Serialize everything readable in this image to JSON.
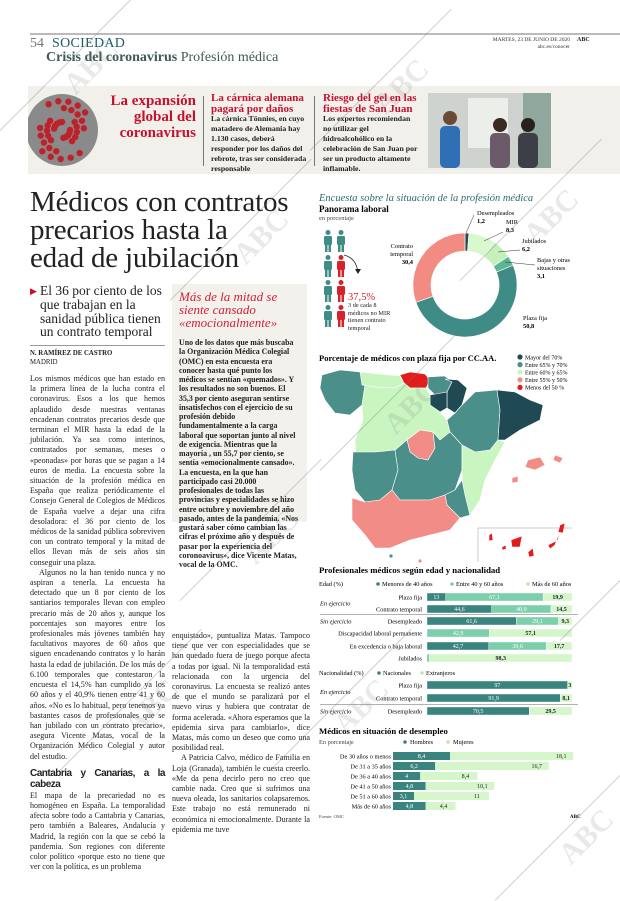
{
  "header": {
    "page_number": "54",
    "section": "SOCIEDAD",
    "kicker_bold": "Crisis del coronavirus",
    "kicker": "Profesión médica",
    "date": "MARTES, 23 DE JUNIO DE 2020",
    "brand": "ABC",
    "url": "abc.es/conocer"
  },
  "teasers": {
    "main": "La expansión\nglobal del\ncoronavirus",
    "items": [
      {
        "title": "La cárnica alemana pagará por daños",
        "body": "La cárnica Tönnies, en cuyo matadero de Alemania hay 1.130 casos, deberá responder por los daños del rebrote, tras ser considerada responsable"
      },
      {
        "title": "Riesgo del gel en las fiestas de San Juan",
        "body": "Los expertos recomiendan no utilizar gel hidroalcohólico en la celebración de San Juan por ser un producto altamente inflamable."
      }
    ]
  },
  "article": {
    "headline": "Médicos con contratos\nprecarios hasta la\nedad de jubilación",
    "summary": "El 36 por ciento de los que trabajan en la sanidad pública tienen un contrato temporal",
    "byline": "N. RAMÍREZ DE CASTRO",
    "location": "MADRID",
    "col1": [
      "Los mismos médicos que han estado en la primera línea de la lucha contra el coronavirus. Esos a los que hemos aplaudido desde nuestras ventanas encadenan contratos precarios desde que terminan el MIR hasta la edad de la jubilación. Ya sea como interinos, contratados por semanas, meses o «peonadas» por horas que se pagan a 14 euros de media. La encuesta sobre la situación de la profesión médica en España que realiza periódicamente el Consejo General de Colegios de Médicos de España vuelve a dejar una cifra desoladora: el 36 por ciento de los médicos de la sanidad pública sobreviven con un contrato temporal y la mitad de ellos llevan más de seis años sin conseguir una plaza.",
      "Algunos no la han tenido nunca y no aspiran a tenerla. La encuesta ha detectado que un 8 por ciento de los santiarios temporales llevan con empleo precario más de 20 años y, aunque los porcentajes son mayores entre los profesionales más jóvenes también hay facultativos mayores de 60 años que siguen encadenando contratos y lo harán hasta la edad de jubilación. De los más de 6.100 temporales que contestaron la encuesta el 14,5% han cumplido ya los 60 años y el 40,9% tienen entre 41 y 60 años. «No es lo habitual, pero tenemos ya bastantes casos de profesionales que se han jubilado con un contrato precario», asegura Vicente Matas, vocal de la Organización Médico Colegial y autor del estudio."
    ],
    "subhead": "Cantabria y Canarias, a la cabeza",
    "col1b": "El mapa de la precariedad no es homogéneo en España. La temporalidad afecta sobre todo a Cantabria y Canarias, pero también a Baleares, Andalucía y Madrid, la región con la que se cebó la pandemia. Son regiones con diferente color político «porque esto no tiene que ver con la política, es un problema",
    "col2": [
      "enquistado», puntualiza Matas. Tampoco tiene que ver con especialidades que se han quedado fuera de juego porque afecta a todas por igual. Ni la temporalidad está relacionada con la urgencia del coronavirus. La encuesta se realizó antes de que el mundo se paralizará por el nuevo virus y hubiera que contratar de forma acelerada. «Ahora esperamos que la epidemia sirva para cambiarlo», dice Matas, más como un deseo que como una posibilidad real.",
      "A Patricia Calvo, médico de Familia en Loja (Granada), también le cuesta creerlo. «Me da pena decirlo pero no creo que cambie nada. Creo que si sufrimos una nueva oleada, los sanitarios colapsaremos. Este trabajo no está remunerado ni económica ni emocionalmente. Durante la epidemia me tuve"
    ]
  },
  "sidebar": {
    "title": "Más de la mitad se siente cansado «emocionalmente»",
    "body": "Uno de los datos que más buscaba la Organización Médica Colegial (OMC) en esta encuesta era conocer hasta qué punto los médicos se sentían «quemados». Y los resultados no son buenos. El 35,3 por ciento aseguran sentirse insatisfechos con el ejercicio de su profesión debido fundamentalmente a la carga laboral que soportan junto al nivel de exigencia. Mientras que la mayoría , un 55,7 por ciento, se sentía «emocionalmente cansado». La encuesta, en la que han participado casi 20.000 profesionales de todas las provincias y especialidades se hizo entre octubre y noviembre del año pasado, antes de la pandemia. «Nos gustará saber cómo cambian las cifras el próximo año y después de pasar por la experiencia del coronoavirus», dice Vicente Matas, vocal de la OMC."
  },
  "infographic": {
    "title": "Encuesta sobre la situación de la profesión médica",
    "callout_value": "37,5%",
    "callout_text": "3 de cada 8 médicos no MIR tienen contrato temporal",
    "people_total": 8,
    "people_temporal": 3,
    "source": "Fuente: OMC",
    "brand": "ABC"
  },
  "colors": {
    "accent_red": "#c8102e",
    "teal_dark": "#3a847f",
    "teal_mid": "#7ccfab",
    "green_pale": "#d4f6ca",
    "salmon": "#f28b82"
  },
  "chart_data": [
    {
      "type": "pie",
      "title": "Panorama laboral",
      "subtitle": "en porcentaje",
      "donut": true,
      "slices": [
        {
          "label": "Desempleados",
          "value": 1.2,
          "color": "#1f4b55"
        },
        {
          "label": "MIR",
          "value": 8.3,
          "color": "#d8f8cd"
        },
        {
          "label": "Jubilados",
          "value": 6.2,
          "color": "#c4f1ba"
        },
        {
          "label": "Bajas y otras situaciones",
          "value": 3.1,
          "color": "#5db596"
        },
        {
          "label": "Plaza fija",
          "value": 50.8,
          "color": "#3f8b85"
        },
        {
          "label": "Contrato temporal",
          "value": 30.4,
          "color": "#f28b82"
        }
      ]
    },
    {
      "type": "choropleth",
      "title": "Porcentaje de médicos con plaza fija por CC.AA.",
      "legend": [
        {
          "label": "Mayor del 70%",
          "color": "#1f4a54"
        },
        {
          "label": "Entre 65% y 70%",
          "color": "#4a8f89"
        },
        {
          "label": "Entre 60% y 65%",
          "color": "#c9f5c0"
        },
        {
          "label": "Entre 55% y 50%",
          "color": "#f28c86"
        },
        {
          "label": "Menos del 50 %",
          "color": "#e31b1b"
        }
      ],
      "regions": {
        "galicia": 1,
        "asturias": 2,
        "cantabria": 4,
        "pais-vasco": 1,
        "navarra": 0,
        "la-rioja": 0,
        "castilla-y-leon": 2,
        "aragon": 1,
        "cataluna": 0,
        "madrid": 3,
        "extremadura": 1,
        "castilla-la-mancha": 1,
        "comunidad-valenciana": 2,
        "murcia": 1,
        "andalucia": 3,
        "baleares": 3,
        "canarias": 4,
        "ceuta": 1,
        "melilla": 3
      }
    },
    {
      "type": "bar",
      "orientation": "horizontal",
      "stacked": true,
      "title": "Profesionales médicos según edad y nacionalidad",
      "label": "Edad (%)",
      "xlim": [
        0,
        100
      ],
      "series": [
        {
          "name": "Menores de 40 años",
          "color": "#3a847f"
        },
        {
          "name": "Entre 40 y 60 años",
          "color": "#7ccfab"
        },
        {
          "name": "Más de 60 años",
          "color": "#d4f6ca"
        }
      ],
      "rows": [
        {
          "group": "En ejercicio",
          "label": "Plaza fija",
          "values": [
            13,
            67.1,
            19.9
          ]
        },
        {
          "group": "En ejercicio",
          "label": "Contrato temporal",
          "values": [
            44.6,
            40.9,
            14.5
          ]
        },
        {
          "group": "Sin ejercicio",
          "label": "Desempleado",
          "values": [
            61.6,
            29.1,
            9.3
          ]
        },
        {
          "group": "",
          "label": "Discapacidad laboral permanente",
          "values": [
            0,
            42.9,
            57.1
          ]
        },
        {
          "group": "",
          "label": "En excedencia o baja laboral",
          "values": [
            42.7,
            39.6,
            17.7
          ]
        },
        {
          "group": "",
          "label": "Jubilados",
          "values": [
            0,
            1.7,
            98.3
          ]
        }
      ]
    },
    {
      "type": "bar",
      "orientation": "horizontal",
      "stacked": true,
      "label": "Nacionalidad (%)",
      "xlim": [
        0,
        100
      ],
      "series": [
        {
          "name": "Nacionales",
          "color": "#3a847f"
        },
        {
          "name": "Extranjeros",
          "color": "#d4f6ca"
        }
      ],
      "rows": [
        {
          "group": "En ejercicio",
          "label": "Plaza fija",
          "values": [
            97,
            3
          ]
        },
        {
          "group": "En ejercicio",
          "label": "Contrato temporal",
          "values": [
            91.9,
            8.1
          ]
        },
        {
          "group": "Sin ejercicio",
          "label": "Desempleado",
          "values": [
            70.5,
            29.5
          ]
        }
      ]
    },
    {
      "type": "bar",
      "orientation": "horizontal",
      "stacked": true,
      "title": "Médicos en situación de desempleo",
      "subtitle": "En porcentaje",
      "series": [
        {
          "name": "Hombres",
          "color": "#3a847f",
          "values": [
            8.4,
            6.2,
            4,
            4.8,
            3.1,
            4.8
          ]
        },
        {
          "name": "Mujeres",
          "color": "#d4f6ca",
          "values": [
            18.1,
            16.7,
            8.4,
            10.1,
            11,
            4.4
          ]
        }
      ],
      "categories": [
        "De 30 años o menos",
        "De 31 a 35 años",
        "De 36 a 40 años",
        "De 41 a 50 años",
        "De 51 a 60 años",
        "Más de 60 años"
      ]
    }
  ],
  "watermark": "ABC"
}
